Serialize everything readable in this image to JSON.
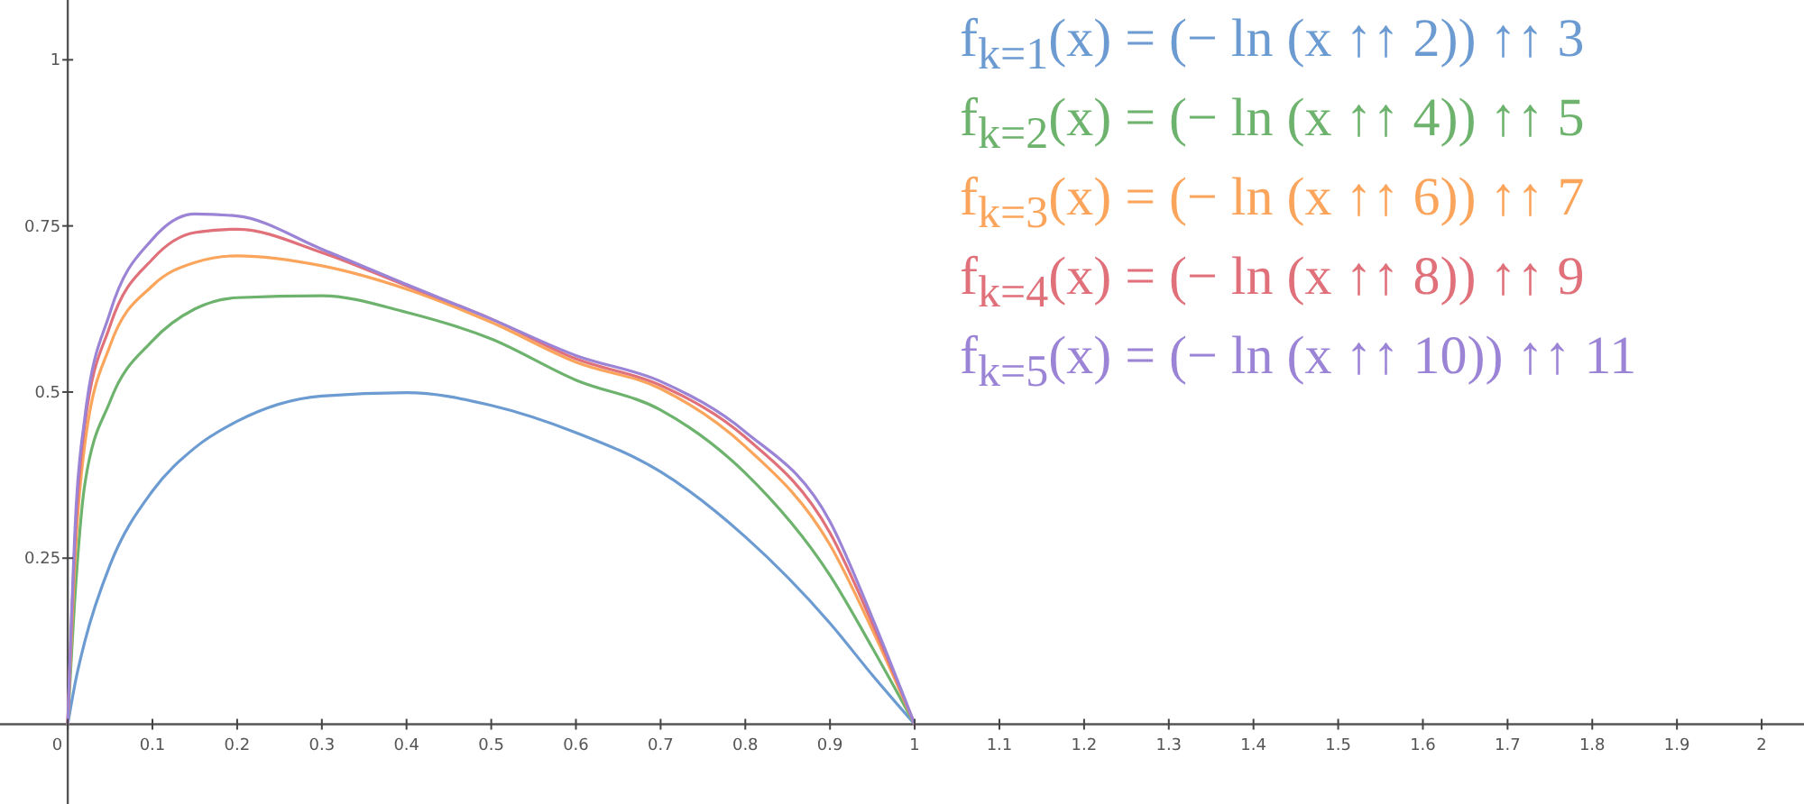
{
  "chart_data": {
    "type": "line",
    "x": [
      0,
      0.01,
      0.02,
      0.05,
      0.1,
      0.15,
      0.2,
      0.3,
      0.4,
      0.5,
      0.6,
      0.7,
      0.8,
      0.9,
      0.95,
      1
    ],
    "series": [
      {
        "name": "f$_{k=1}$(x) = (− ln (x ↑↑ 2)) ↑↑ 3",
        "color": "#6c9bd2",
        "values": [
          0,
          0.07,
          0.124,
          0.24,
          0.351,
          0.416,
          0.456,
          0.494,
          0.499,
          0.48,
          0.439,
          0.38,
          0.282,
          0.152,
          0.074,
          0
        ]
      },
      {
        "name": "f$_{k=2}$(x) = (− ln (x ↑↑ 4)) ↑↑ 5",
        "color": "#6db36d",
        "values": [
          0,
          0.22,
          0.36,
          0.486,
          0.577,
          0.625,
          0.642,
          0.645,
          0.62,
          0.58,
          0.518,
          0.473,
          0.378,
          0.224,
          0.115,
          0
        ]
      },
      {
        "name": "f$_{k=3}$(x) = (− ln (x ↑↑ 6)) ↑↑ 7",
        "color": "#fba55c",
        "values": [
          0,
          0.28,
          0.42,
          0.57,
          0.66,
          0.695,
          0.705,
          0.69,
          0.655,
          0.605,
          0.545,
          0.505,
          0.418,
          0.27,
          0.142,
          0
        ]
      },
      {
        "name": "f$_{k=4}$(x) = (− ln (x ↑↑ 8)) ↑↑ 9",
        "color": "#e0707a",
        "values": [
          0,
          0.31,
          0.45,
          0.6,
          0.7,
          0.74,
          0.745,
          0.71,
          0.66,
          0.61,
          0.55,
          0.51,
          0.432,
          0.288,
          0.152,
          0
        ]
      },
      {
        "name": "f$_{k=5}$(x) = (− ln (x ↑↑ 10)) ↑↑ 11",
        "color": "#9b84d6",
        "values": [
          0,
          0.33,
          0.46,
          0.62,
          0.73,
          0.768,
          0.765,
          0.715,
          0.662,
          0.61,
          0.555,
          0.516,
          0.44,
          0.305,
          0.16,
          0
        ]
      }
    ],
    "xlim": [
      -0.08,
      2.05
    ],
    "ylim": [
      -0.12,
      1.09
    ],
    "xticks": [
      0,
      0.1,
      0.2,
      0.3,
      0.4,
      0.5,
      0.6,
      0.7,
      0.8,
      0.9,
      1,
      1.1,
      1.2,
      1.3,
      1.4,
      1.5,
      1.6,
      1.7,
      1.8,
      1.9,
      2
    ],
    "yticks": [
      0.25,
      0.5,
      0.75,
      1
    ],
    "legend": "top right",
    "grid": false,
    "marker": "none",
    "line_style": "solid"
  }
}
